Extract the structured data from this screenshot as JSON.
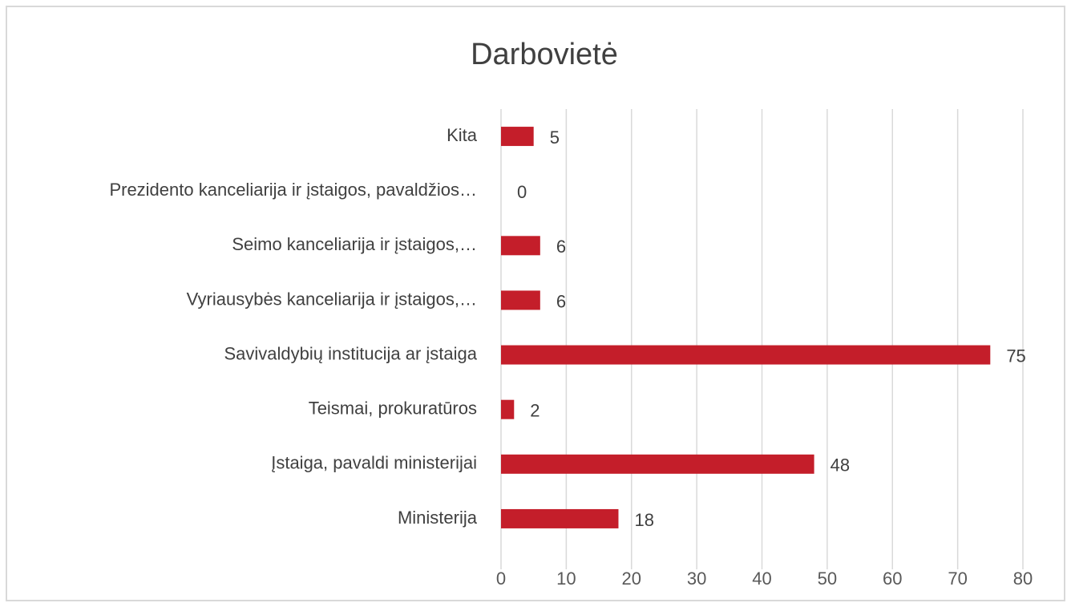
{
  "chart_data": {
    "type": "bar",
    "orientation": "horizontal",
    "title": "Darbovietė",
    "categories": [
      "Kita",
      "Prezidento kanceliarija ir įstaigos, pavaldžios…",
      "Seimo kanceliarija ir įstaigos,…",
      "Vyriausybės kanceliarija ir įstaigos,…",
      "Savivaldybių institucija ar įstaiga",
      "Teismai, prokuratūros",
      "Įstaiga, pavaldi ministerijai",
      "Ministerija"
    ],
    "values": [
      5,
      0,
      6,
      6,
      75,
      2,
      48,
      18
    ],
    "color": "#c41e2a",
    "xlim": [
      0,
      80
    ],
    "xticks": [
      0,
      10,
      20,
      30,
      40,
      50,
      60,
      70,
      80
    ],
    "grid": true
  }
}
